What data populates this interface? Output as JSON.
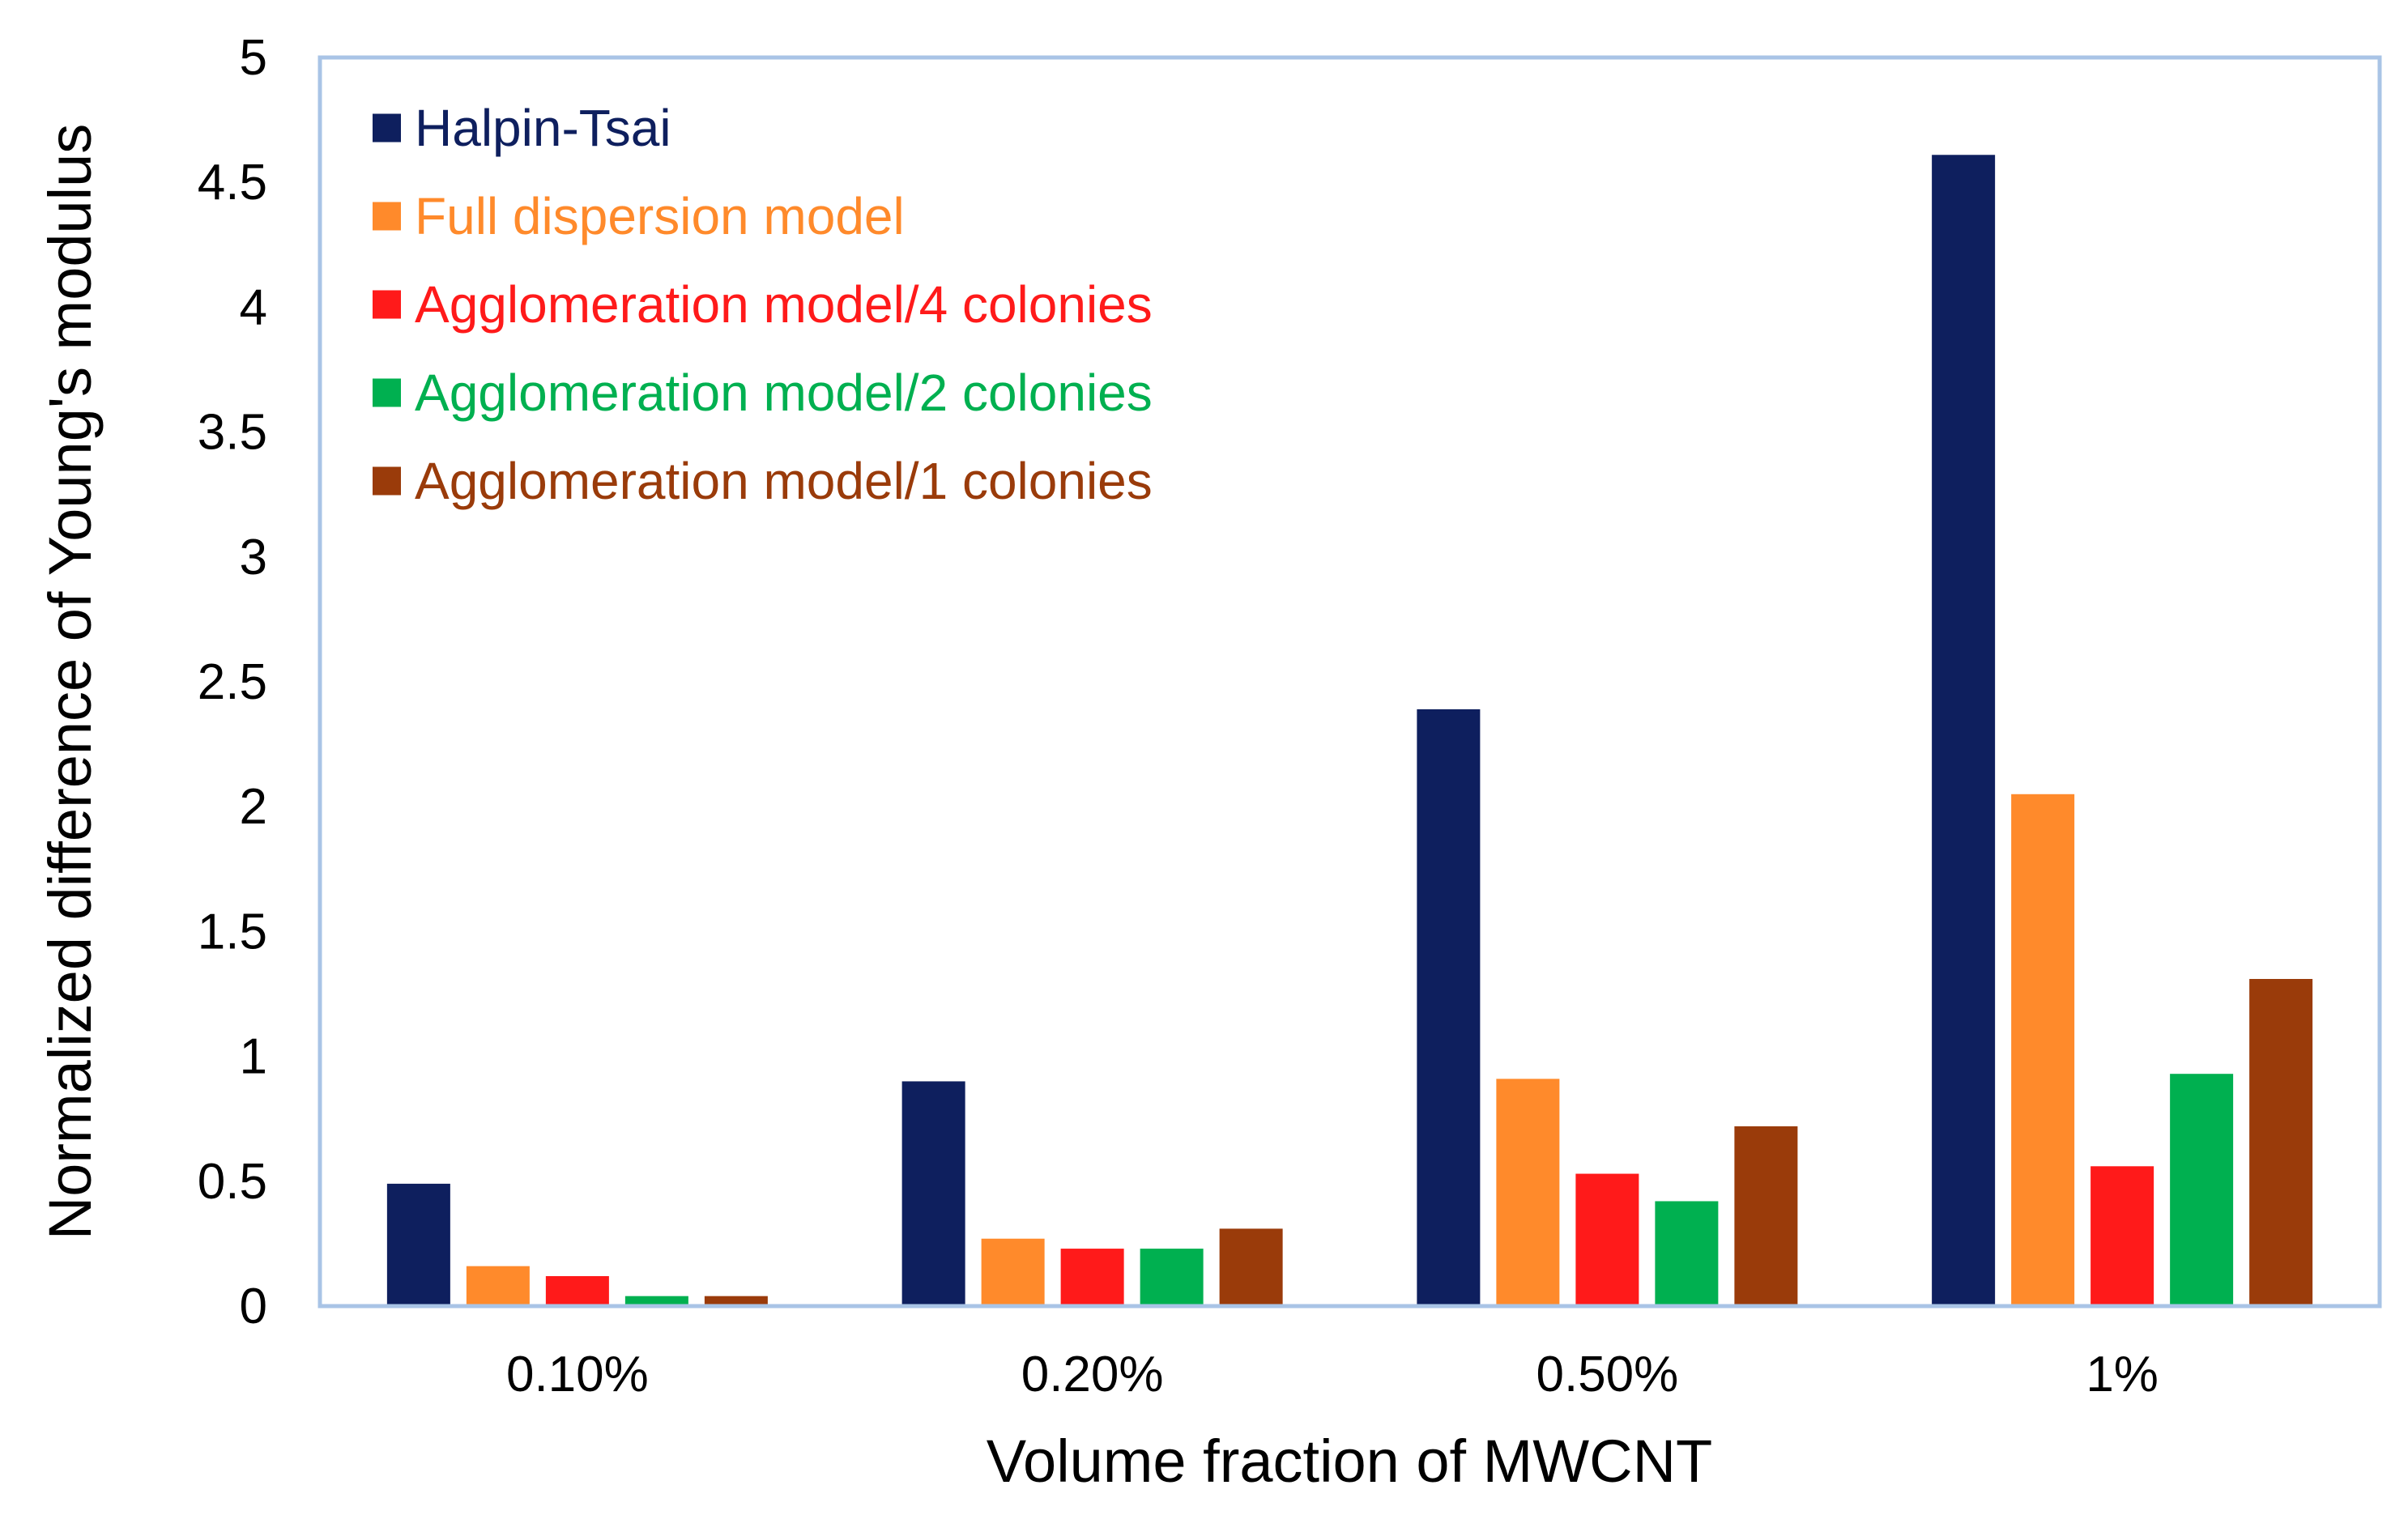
{
  "chart_data": {
    "type": "bar",
    "title": "",
    "xlabel": "Volume fraction of MWCNT",
    "ylabel": "Normalized difference of Young's modulus",
    "ylim": [
      0,
      5
    ],
    "yticks": [
      "0",
      "0.5",
      "1",
      "1.5",
      "2",
      "2.5",
      "3",
      "3.5",
      "4",
      "4.5",
      "5"
    ],
    "categories": [
      "0.10%",
      "0.20%",
      "0.50%",
      "1%"
    ],
    "grid": false,
    "legend_position": "top-left",
    "series": [
      {
        "name": "Halpin-Tsai",
        "color": "#0e1f5e",
        "values": [
          0.49,
          0.9,
          2.39,
          4.61
        ]
      },
      {
        "name": "Full dispersion model",
        "color": "#ff8a2b",
        "values": [
          0.16,
          0.27,
          0.91,
          2.05
        ]
      },
      {
        "name": "Agglomeration model/4 colonies",
        "color": "#ff1a1a",
        "values": [
          0.12,
          0.23,
          0.53,
          0.56
        ]
      },
      {
        "name": "Agglomeration model/2 colonies",
        "color": "#00b050",
        "values": [
          0.04,
          0.23,
          0.42,
          0.93
        ]
      },
      {
        "name": "Agglomeration model/1 colonies",
        "color": "#9a3b0a",
        "values": [
          0.04,
          0.31,
          0.72,
          1.31
        ]
      }
    ]
  },
  "colors": {
    "plot_border": "#a9c4e6"
  }
}
